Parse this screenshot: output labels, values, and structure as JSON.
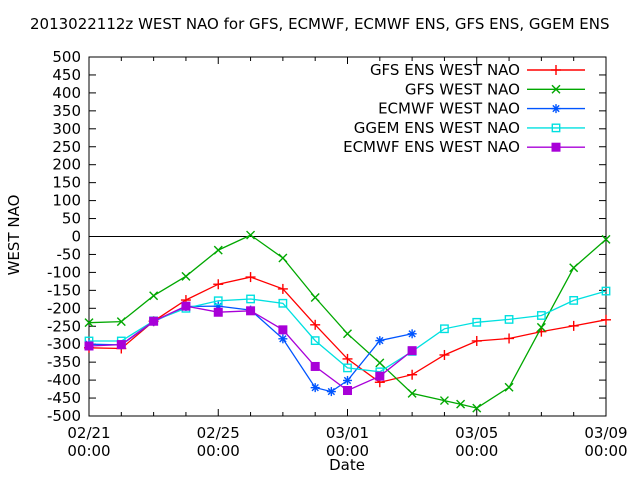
{
  "title": "2013022112z WEST NAO for GFS, ECMWF, ECMWF ENS, GFS ENS, GGEM ENS",
  "chart_data": {
    "type": "line",
    "title": "2013022112z WEST NAO for GFS, ECMWF, ECMWF ENS, GFS ENS, GGEM ENS",
    "xlabel": "Date",
    "ylabel": "WEST NAO",
    "ylim": [
      -500,
      500
    ],
    "ytick_step": 50,
    "xlim_days": [
      0,
      16
    ],
    "x_minor_step_days": 1,
    "x_major_tick_days": [
      0,
      4,
      8,
      12,
      16
    ],
    "x_major_labels": [
      [
        "02/21",
        "00:00"
      ],
      [
        "02/25",
        "00:00"
      ],
      [
        "03/01",
        "00:00"
      ],
      [
        "03/05",
        "00:00"
      ],
      [
        "03/09",
        "00:00"
      ]
    ],
    "zero_line": true,
    "grid": false,
    "legend_position": "top-right-inside",
    "series": [
      {
        "name": "GFS ENS WEST NAO",
        "color": "#ff0000",
        "marker": "plus",
        "points": [
          [
            0,
            -310
          ],
          [
            1,
            -312
          ],
          [
            2,
            -236
          ],
          [
            3,
            -177
          ],
          [
            4,
            -133
          ],
          [
            5,
            -113
          ],
          [
            6,
            -146
          ],
          [
            7,
            -246
          ],
          [
            8,
            -341
          ],
          [
            9,
            -406
          ],
          [
            10,
            -385
          ],
          [
            11,
            -330
          ],
          [
            12,
            -291
          ],
          [
            13,
            -284
          ],
          [
            14,
            -265
          ],
          [
            15,
            -249
          ],
          [
            16,
            -232
          ]
        ]
      },
      {
        "name": "GFS WEST NAO",
        "color": "#00a800",
        "marker": "cross",
        "points": [
          [
            0,
            -240
          ],
          [
            1,
            -237
          ],
          [
            2,
            -165
          ],
          [
            3,
            -111
          ],
          [
            4,
            -38
          ],
          [
            5,
            4
          ],
          [
            6,
            -60
          ],
          [
            7,
            -170
          ],
          [
            8,
            -271
          ],
          [
            9,
            -352
          ],
          [
            10,
            -437
          ],
          [
            11,
            -457
          ],
          [
            11.5,
            -467
          ],
          [
            12,
            -478
          ],
          [
            13,
            -420
          ],
          [
            14,
            -253
          ],
          [
            15,
            -87
          ],
          [
            16,
            -8
          ]
        ]
      },
      {
        "name": "ECMWF WEST NAO",
        "color": "#0055ff",
        "marker": "asterisk",
        "points": [
          [
            0,
            -300
          ],
          [
            1,
            -302
          ],
          [
            2,
            -237
          ],
          [
            3,
            -195
          ],
          [
            4,
            -194
          ],
          [
            5,
            -205
          ],
          [
            6,
            -285
          ],
          [
            7,
            -421
          ],
          [
            7.5,
            -432
          ],
          [
            8,
            -401
          ],
          [
            9,
            -290
          ],
          [
            10,
            -271
          ]
        ]
      },
      {
        "name": "GGEM ENS WEST NAO",
        "color": "#00e0e0",
        "marker": "square-open",
        "points": [
          [
            0,
            -291
          ],
          [
            1,
            -291
          ],
          [
            2,
            -235
          ],
          [
            3,
            -200
          ],
          [
            4,
            -179
          ],
          [
            5,
            -174
          ],
          [
            6,
            -186
          ],
          [
            7,
            -290
          ],
          [
            8,
            -366
          ],
          [
            9,
            -377
          ],
          [
            10,
            -320
          ],
          [
            11,
            -257
          ],
          [
            12,
            -239
          ],
          [
            13,
            -231
          ],
          [
            14,
            -220
          ],
          [
            15,
            -178
          ],
          [
            16,
            -152
          ]
        ]
      },
      {
        "name": "ECMWF ENS WEST NAO",
        "color": "#a800d8",
        "marker": "square-filled",
        "points": [
          [
            0,
            -305
          ],
          [
            1,
            -301
          ],
          [
            2,
            -236
          ],
          [
            3,
            -194
          ],
          [
            4,
            -211
          ],
          [
            5,
            -207
          ],
          [
            6,
            -260
          ],
          [
            7,
            -362
          ],
          [
            8,
            -429
          ],
          [
            9,
            -389
          ],
          [
            10,
            -318
          ]
        ]
      }
    ]
  }
}
